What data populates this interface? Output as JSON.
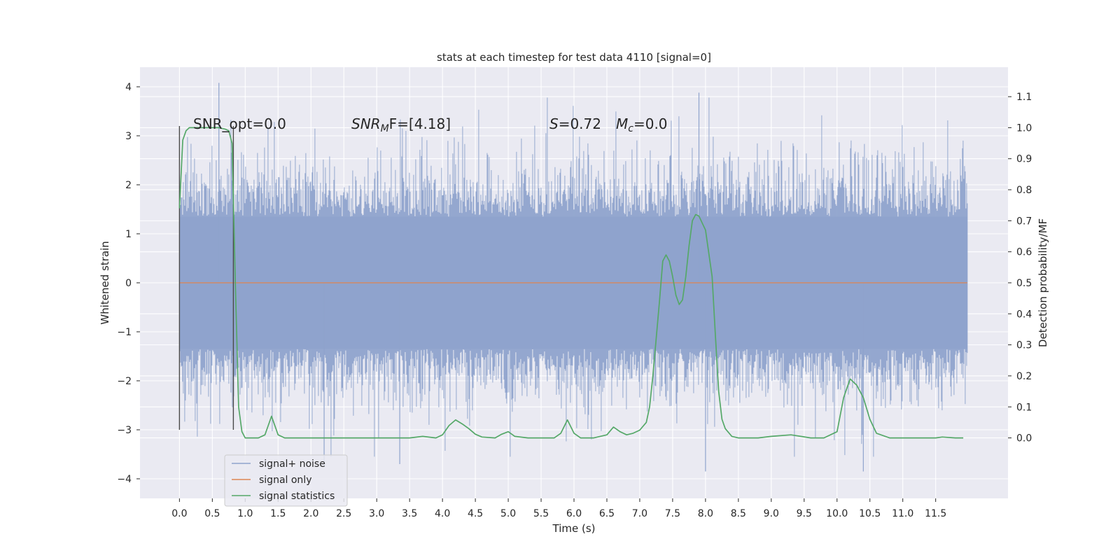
{
  "chart_data": {
    "type": "line",
    "title": "stats at each timestep for test data 4110 [signal=0]",
    "xlabel": "Time (s)",
    "ylabel_left": "Whitened strain",
    "ylabel_right": "Detection probability/MF",
    "xlim": [
      -0.6,
      12.6
    ],
    "ylim_left": [
      -4.4,
      4.4
    ],
    "ylim_right": [
      -0.195,
      1.195
    ],
    "x_ticks": [
      0.0,
      0.5,
      1.0,
      1.5,
      2.0,
      2.5,
      3.0,
      3.5,
      4.0,
      4.5,
      5.0,
      5.5,
      6.0,
      6.5,
      7.0,
      7.5,
      8.0,
      8.5,
      9.0,
      9.5,
      10.0,
      10.5,
      11.0,
      11.5
    ],
    "x_tick_labels": [
      "0.0",
      "0.5",
      "1.0",
      "1.5",
      "2.0",
      "2.5",
      "3.0",
      "3.5",
      "4.0",
      "4.5",
      "5.0",
      "5.5",
      "6.0",
      "6.5",
      "7.0",
      "7.5",
      "8.0",
      "8.5",
      "9.0",
      "9.5",
      "10.0",
      "10.5",
      "11.0",
      "11.5"
    ],
    "y_left_ticks": [
      -4,
      -3,
      -2,
      -1,
      0,
      1,
      2,
      3,
      4
    ],
    "y_left_tick_labels": [
      "−4",
      "−3",
      "−2",
      "−1",
      "0",
      "1",
      "2",
      "3",
      "4"
    ],
    "y_right_ticks": [
      0.0,
      0.1,
      0.2,
      0.3,
      0.4,
      0.5,
      0.6,
      0.7,
      0.8,
      0.9,
      1.0,
      1.1
    ],
    "y_right_tick_labels": [
      "0.0",
      "0.1",
      "0.2",
      "0.3",
      "0.4",
      "0.5",
      "0.6",
      "0.7",
      "0.8",
      "0.9",
      "1.0",
      "1.1"
    ],
    "grid": true,
    "legend_position": "lower-left",
    "annotations": {
      "snr_opt": "SNR_opt=0.0",
      "snr_mf_main": "SNR",
      "snr_mf_sub": "M",
      "snr_mf_rest": "F=[4.18]",
      "s_main": "S",
      "s_rest": "=0.72",
      "mc_main": "M",
      "mc_sub": "c",
      "mc_rest": "=0.0"
    },
    "markers": [
      {
        "x": 0.0,
        "y_from": -3.0,
        "y_to": 3.2
      },
      {
        "x": 0.82,
        "y_from": -3.0,
        "y_to": 3.2
      }
    ],
    "series": [
      {
        "name": "signal+ noise",
        "axis": "left",
        "color": "#8fa3cc",
        "noise": {
          "x_start": 0.0,
          "x_end": 11.98,
          "core_amplitude": 1.35,
          "peak_high": 4.08,
          "peak_low": -3.85
        }
      },
      {
        "name": "signal only",
        "axis": "left",
        "color": "#dd8452",
        "x": [
          0.0,
          11.98
        ],
        "y": [
          0.0,
          0.0
        ]
      },
      {
        "name": "signal statistics",
        "axis": "right",
        "color": "#55a868",
        "x": [
          0.0,
          0.05,
          0.1,
          0.15,
          0.2,
          0.3,
          0.4,
          0.5,
          0.6,
          0.7,
          0.75,
          0.8,
          0.85,
          0.9,
          0.95,
          1.0,
          1.05,
          1.1,
          1.2,
          1.3,
          1.4,
          1.5,
          1.6,
          1.7,
          2.0,
          2.5,
          3.0,
          3.5,
          3.7,
          3.9,
          4.0,
          4.1,
          4.2,
          4.3,
          4.4,
          4.5,
          4.6,
          4.8,
          4.9,
          5.0,
          5.1,
          5.3,
          5.5,
          5.7,
          5.8,
          5.9,
          6.0,
          6.1,
          6.3,
          6.5,
          6.6,
          6.7,
          6.8,
          6.9,
          7.0,
          7.1,
          7.15,
          7.2,
          7.25,
          7.3,
          7.35,
          7.4,
          7.45,
          7.5,
          7.55,
          7.6,
          7.65,
          7.7,
          7.75,
          7.8,
          7.85,
          7.9,
          8.0,
          8.1,
          8.15,
          8.2,
          8.25,
          8.3,
          8.4,
          8.5,
          8.6,
          8.8,
          9.0,
          9.3,
          9.45,
          9.6,
          9.8,
          10.0,
          10.1,
          10.15,
          10.2,
          10.3,
          10.4,
          10.5,
          10.6,
          10.8,
          11.0,
          11.3,
          11.5,
          11.6,
          11.8,
          11.92
        ],
        "y": [
          0.74,
          0.96,
          0.99,
          1.0,
          1.0,
          1.0,
          1.0,
          1.0,
          1.0,
          0.995,
          0.99,
          0.95,
          0.5,
          0.1,
          0.02,
          0.0,
          0.0,
          0.0,
          0.0,
          0.01,
          0.07,
          0.01,
          0.0,
          0.0,
          0.0,
          0.0,
          0.0,
          0.0,
          0.005,
          0.0,
          0.01,
          0.04,
          0.058,
          0.045,
          0.03,
          0.012,
          0.003,
          0.0,
          0.012,
          0.02,
          0.005,
          0.0,
          0.0,
          0.0,
          0.015,
          0.058,
          0.015,
          0.0,
          0.0,
          0.01,
          0.035,
          0.02,
          0.01,
          0.015,
          0.025,
          0.05,
          0.1,
          0.2,
          0.32,
          0.44,
          0.57,
          0.59,
          0.57,
          0.52,
          0.46,
          0.43,
          0.445,
          0.52,
          0.62,
          0.7,
          0.72,
          0.715,
          0.67,
          0.52,
          0.33,
          0.15,
          0.06,
          0.03,
          0.005,
          0.0,
          0.0,
          0.0,
          0.005,
          0.01,
          0.005,
          0.0,
          0.0,
          0.02,
          0.13,
          0.16,
          0.19,
          0.17,
          0.13,
          0.06,
          0.015,
          0.0,
          0.0,
          0.0,
          0.0,
          0.003,
          0.0,
          0.0
        ]
      }
    ]
  }
}
